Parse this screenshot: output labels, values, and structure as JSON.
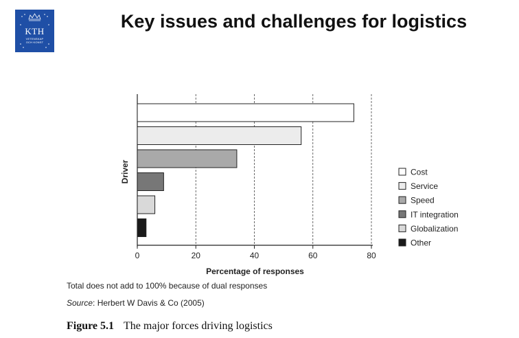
{
  "header": {
    "title": "Key issues and challenges for logistics",
    "logo": {
      "text": "KTH",
      "motto": "VETENSKAP\nOCH KONST",
      "color": "#1f4fa6"
    }
  },
  "chart_data": {
    "type": "bar",
    "orientation": "horizontal",
    "categories": [
      "Cost",
      "Service",
      "Speed",
      "IT integration",
      "Globalization",
      "Other"
    ],
    "values": [
      74,
      56,
      34,
      9,
      6,
      3
    ],
    "colors": [
      "#ffffff",
      "#ececec",
      "#a9a9a9",
      "#777777",
      "#d9d9d9",
      "#1a1a1a"
    ],
    "xlabel": "Percentage of responses",
    "ylabel": "Driver",
    "xlim": [
      0,
      80
    ],
    "xticks": [
      "0",
      "20",
      "40",
      "60",
      "80"
    ],
    "grid": "vertical dashed",
    "legend": "right"
  },
  "notes": {
    "dual": "Total does not add to 100% because of dual responses",
    "source_label": "Source",
    "source_text": ": Herbert W Davis & Co (2005)"
  },
  "caption": {
    "label": "Figure 5.1",
    "text": "The major forces driving logistics"
  }
}
